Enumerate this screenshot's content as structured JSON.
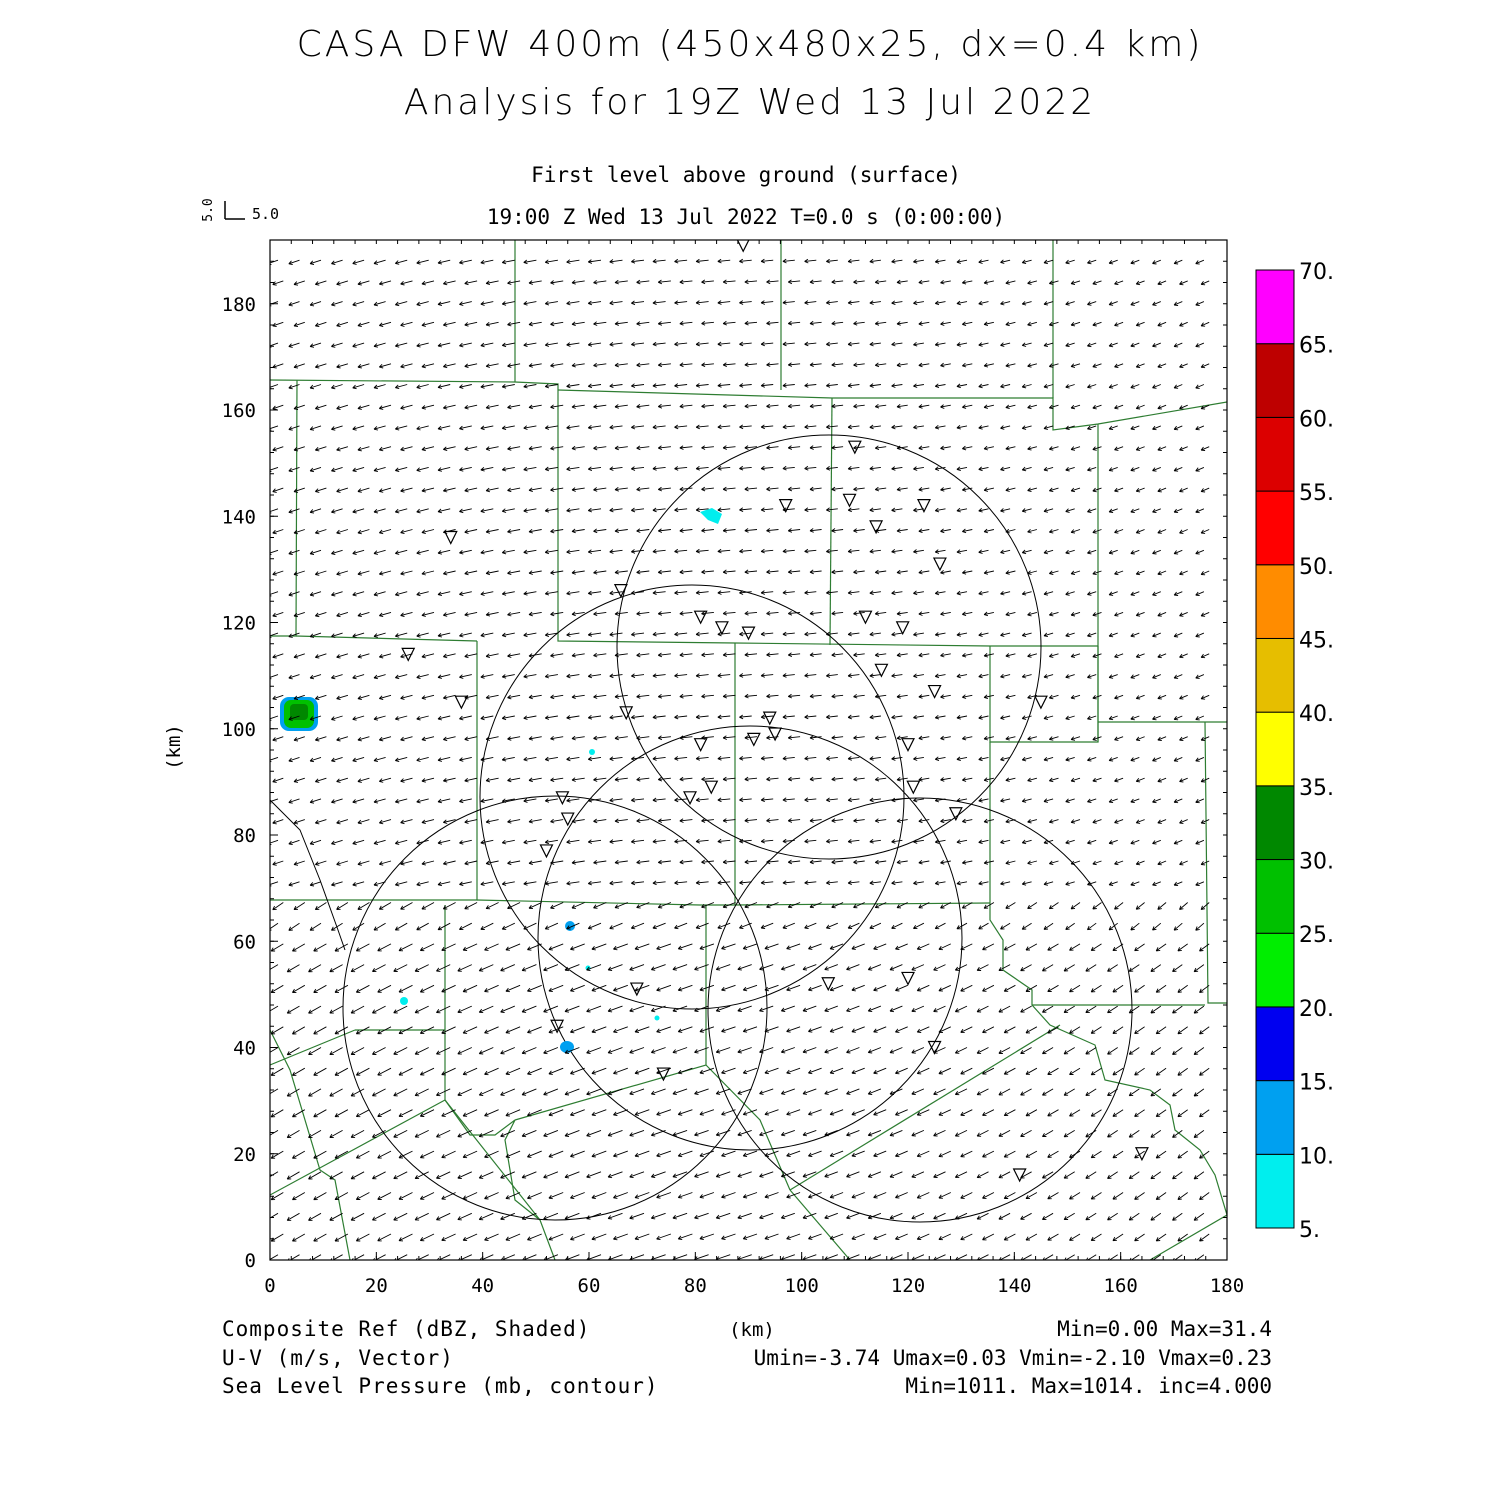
{
  "title": {
    "line1": "CASA DFW 400m (450x480x25, dx=0.4 km)",
    "line2": "Analysis for 19Z Wed 13 Jul 2022"
  },
  "subtitle": {
    "level": "First level above ground (surface)",
    "time": "19:00 Z Wed 13 Jul 2022    T=0.0 s (0:00:00)"
  },
  "reference_vector": {
    "u_label": "5.0",
    "v_label": "5.0"
  },
  "axes": {
    "x_label": "(km)",
    "y_label": "(km)",
    "x_ticks": [
      0,
      20,
      40,
      60,
      80,
      100,
      120,
      140,
      160,
      180
    ],
    "y_ticks": [
      0,
      20,
      40,
      60,
      80,
      100,
      120,
      140,
      160,
      180
    ],
    "x_range": [
      0,
      180
    ],
    "y_range": [
      0,
      192
    ]
  },
  "colorbar": {
    "labels": [
      "5.",
      "10.",
      "15.",
      "20.",
      "25.",
      "30.",
      "35.",
      "40.",
      "45.",
      "50.",
      "55.",
      "60.",
      "65.",
      "70."
    ],
    "colors": [
      "#00eeee",
      "#00a0f0",
      "#0000f0",
      "#00ee00",
      "#00c000",
      "#008800",
      "#ffff00",
      "#e6be00",
      "#ff8c00",
      "#ff0000",
      "#dc0000",
      "#be0000",
      "#ff00ff"
    ]
  },
  "footer": {
    "left": [
      "Composite Ref (dBZ, Shaded)",
      "U-V (m/s, Vector)",
      "Sea Level Pressure (mb, contour)"
    ],
    "center": "(km)",
    "right": [
      "Min=0.00 Max=31.4",
      "Umin=-3.74 Umax=0.03 Vmin=-2.10 Vmax=0.23",
      "Min=1011. Max=1014. inc=4.000"
    ]
  },
  "chart_data": {
    "type": "map",
    "field_shaded": "Composite Ref (dBZ)",
    "field_vector": "U-V (m/s)",
    "field_contour": "Sea Level Pressure (mb)",
    "reflectivity_min": 0.0,
    "reflectivity_max": 31.4,
    "u_min": -3.74,
    "u_max": 0.03,
    "v_min": -2.1,
    "v_max": 0.23,
    "slp_min": 1011,
    "slp_max": 1014,
    "slp_inc": 4.0,
    "radar_range_circles_km": [
      {
        "x": 105,
        "y": 115,
        "r": 40
      },
      {
        "x": 79,
        "y": 87,
        "r": 40
      },
      {
        "x": 90,
        "y": 60,
        "r": 40
      },
      {
        "x": 52,
        "y": 48,
        "r": 40
      },
      {
        "x": 122,
        "y": 47,
        "r": 40
      }
    ],
    "echoes": [
      {
        "x": 4,
        "y": 102,
        "dbz": 31.4
      },
      {
        "x": 83,
        "y": 140,
        "dbz": 8
      },
      {
        "x": 56,
        "y": 40,
        "dbz": 12
      },
      {
        "x": 57,
        "y": 63,
        "dbz": 10
      },
      {
        "x": 25,
        "y": 49,
        "dbz": 8
      },
      {
        "x": 61,
        "y": 95,
        "dbz": 6
      },
      {
        "x": 60,
        "y": 55,
        "dbz": 6
      },
      {
        "x": 73,
        "y": 45,
        "dbz": 6
      }
    ],
    "stations_km": [
      [
        89,
        191
      ],
      [
        34,
        136
      ],
      [
        110,
        153
      ],
      [
        97,
        142
      ],
      [
        109,
        143
      ],
      [
        123,
        142
      ],
      [
        114,
        138
      ],
      [
        126,
        131
      ],
      [
        66,
        126
      ],
      [
        81,
        121
      ],
      [
        85,
        119
      ],
      [
        90,
        118
      ],
      [
        112,
        121
      ],
      [
        119,
        119
      ],
      [
        26,
        114
      ],
      [
        36,
        105
      ],
      [
        67,
        103
      ],
      [
        115,
        111
      ],
      [
        125,
        107
      ],
      [
        145,
        105
      ],
      [
        94,
        102
      ],
      [
        95,
        99
      ],
      [
        91,
        98
      ],
      [
        81,
        97
      ],
      [
        120,
        97
      ],
      [
        83,
        89
      ],
      [
        121,
        89
      ],
      [
        79,
        87
      ],
      [
        55,
        87
      ],
      [
        56,
        83
      ],
      [
        129,
        84
      ],
      [
        52,
        77
      ],
      [
        69,
        51
      ],
      [
        105,
        52
      ],
      [
        120,
        53
      ],
      [
        54,
        44
      ],
      [
        125,
        40
      ],
      [
        74,
        35
      ],
      [
        164,
        20
      ],
      [
        141,
        16
      ]
    ]
  }
}
